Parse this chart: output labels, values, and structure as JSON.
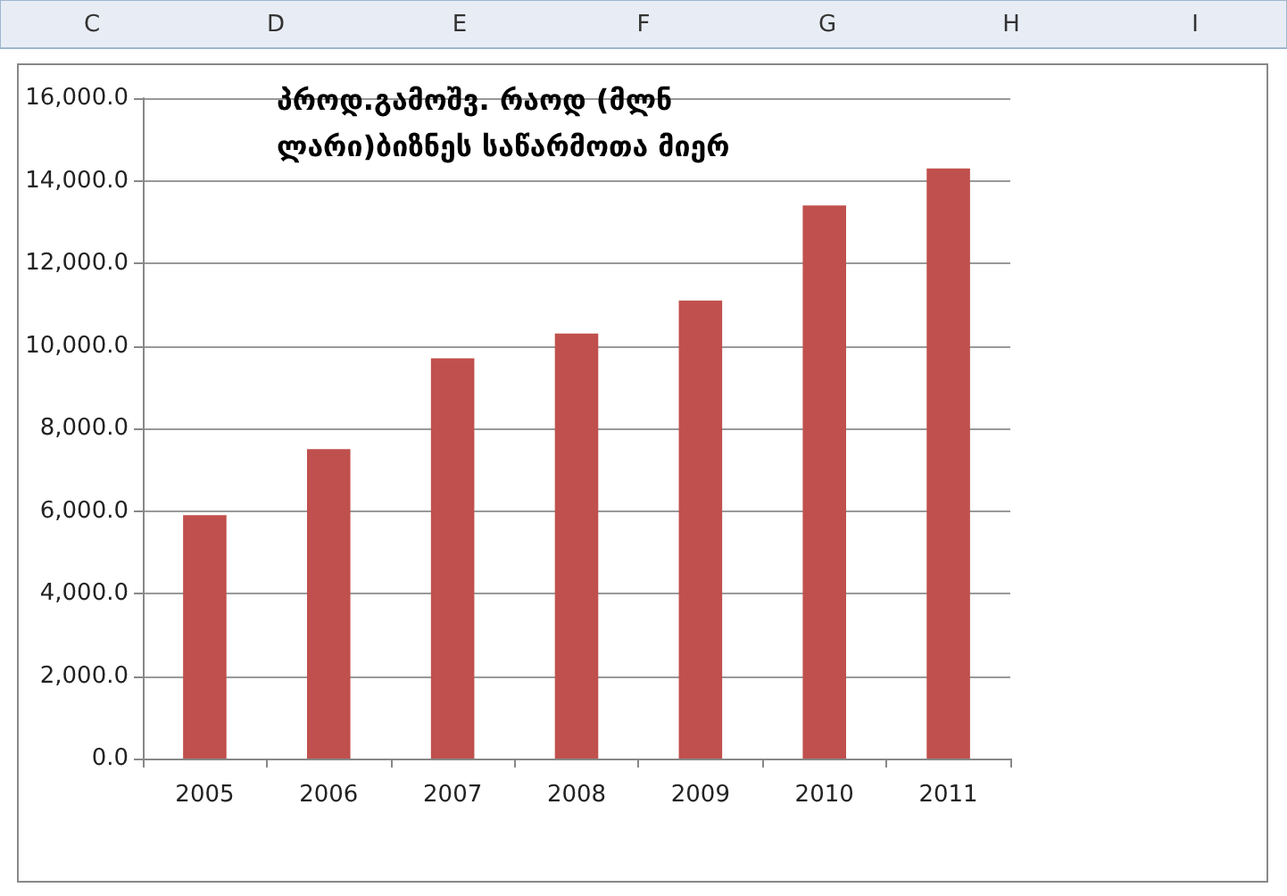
{
  "chart_data": {
    "type": "bar",
    "title": "პროდ.გამოშვ. რაოდ (მლნ ლარი)ბიზნეს საწარმოთა მიერ",
    "annotations": [
      "C",
      "D",
      "E",
      "F",
      "G",
      "H",
      "I"
    ],
    "categories": [
      "2005",
      "2006",
      "2007",
      "2008",
      "2009",
      "2010",
      "2011"
    ],
    "values": [
      5900,
      7500,
      9700,
      10300,
      11100,
      13400,
      14300
    ],
    "color": "#c0504d",
    "ylim": [
      0,
      16000
    ],
    "yticks": [
      {
        "value": 0,
        "label": "0.0"
      },
      {
        "value": 2000,
        "label": "2,000.0"
      },
      {
        "value": 4000,
        "label": "4,000.0"
      },
      {
        "value": 6000,
        "label": "6,000.0"
      },
      {
        "value": 8000,
        "label": "8,000.0"
      },
      {
        "value": 10000,
        "label": "10,000.0"
      },
      {
        "value": 12000,
        "label": "12,000.0"
      },
      {
        "value": 14000,
        "label": "14,000.0"
      },
      {
        "value": 16000,
        "label": "16,000.0"
      }
    ],
    "grid": "y"
  }
}
